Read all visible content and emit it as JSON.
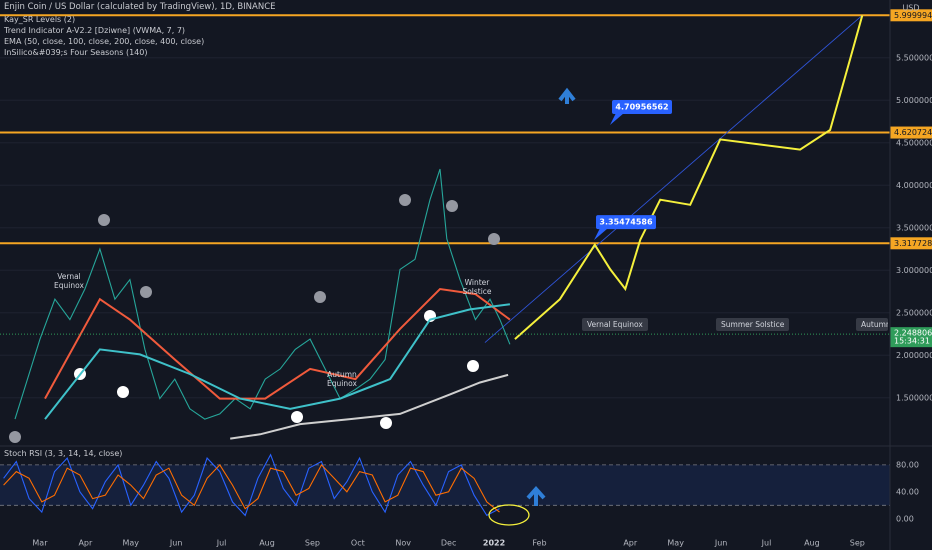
{
  "header": {
    "title": "Enjin Coin / US Dollar (calculated by TradingView), 1D, BINANCE",
    "indicators": [
      "Kay_SR Levels (2)",
      "Trend Indicator A-V2.2 [Dziwne] (VWMA, 7, 7)",
      "EMA (50, close, 100, close, 200, close, 400, close)",
      "InSilico&#039;s Four Seasons (140)"
    ],
    "currency": "USD",
    "countdown": "15:34:31"
  },
  "seasons": {
    "in_chart": [
      "Vernal Equinox",
      "Autumn Equinox",
      "Winter Solstice"
    ],
    "ahead": [
      "Vernal Equinox",
      "Summer Solstice",
      "Autumn E"
    ]
  },
  "chart_data": [
    {
      "type": "line",
      "xlim": [
        -0.88,
        18.72
      ],
      "ylim": [
        0.98,
        6.18
      ],
      "grid": true,
      "xticks": [
        {
          "value": 0,
          "label": "Mar"
        },
        {
          "value": 1,
          "label": "Apr"
        },
        {
          "value": 2,
          "label": "May"
        },
        {
          "value": 3,
          "label": "Jun"
        },
        {
          "value": 4,
          "label": "Jul"
        },
        {
          "value": 5,
          "label": "Aug"
        },
        {
          "value": 6,
          "label": "Sep"
        },
        {
          "value": 7,
          "label": "Oct"
        },
        {
          "value": 8,
          "label": "Nov"
        },
        {
          "value": 9,
          "label": "Dec"
        },
        {
          "value": 10,
          "label": "2022"
        },
        {
          "value": 11,
          "label": "Feb"
        },
        {
          "value": 13,
          "label": "Apr"
        },
        {
          "value": 14,
          "label": "May"
        },
        {
          "value": 15,
          "label": "Jun"
        },
        {
          "value": 16,
          "label": "Jul"
        },
        {
          "value": 17,
          "label": "Aug"
        },
        {
          "value": 18,
          "label": "Sep"
        }
      ],
      "yticks": [
        {
          "value": 1.5,
          "label": "1.50000000"
        },
        {
          "value": 2,
          "label": "2.00000000"
        },
        {
          "value": 2.5,
          "label": "2.50000000"
        },
        {
          "value": 3,
          "label": "3.00000000"
        },
        {
          "value": 3.5,
          "label": "3.50000000"
        },
        {
          "value": 4,
          "label": "4.00000000"
        },
        {
          "value": 4.5,
          "label": "4.50000000"
        },
        {
          "value": 5,
          "label": "5.00000000"
        },
        {
          "value": 5.5,
          "label": "5.50000000"
        }
      ],
      "levels": [
        {
          "value": 5.9999942,
          "label": "5.99999420"
        },
        {
          "value": 4.62072498,
          "label": "4.62072498"
        },
        {
          "value": 3.31772893,
          "label": "3.31772893"
        }
      ],
      "level_color": "#f5a623",
      "last_price": {
        "value": 2.24880659,
        "label": "2.24880659"
      },
      "callouts": [
        {
          "value": 4.70956562,
          "label": "4.70956562"
        },
        {
          "value": 3.35474586,
          "label": "3.35474586"
        }
      ],
      "series": [
        {
          "color": "#26a69a",
          "x": [
            -0.55,
            0,
            0.33,
            0.66,
            0.99,
            1.32,
            1.65,
            1.98,
            2.31,
            2.64,
            2.97,
            3.3,
            3.63,
            3.96,
            4.3,
            4.63,
            4.96,
            5.29,
            5.62,
            5.95,
            6.28,
            6.61,
            6.95,
            7.27,
            7.6,
            7.93,
            8.26,
            8.59,
            8.81,
            8.96,
            9.25,
            9.59,
            9.91,
            10.13,
            10.35
          ],
          "values": [
            1.25,
            2.19,
            2.66,
            2.42,
            2.78,
            3.25,
            2.66,
            2.89,
            2.07,
            1.49,
            1.72,
            1.37,
            1.25,
            1.31,
            1.49,
            1.37,
            1.72,
            1.84,
            2.07,
            2.19,
            1.84,
            1.49,
            1.6,
            1.72,
            1.95,
            3.01,
            3.13,
            3.83,
            4.19,
            3.37,
            2.89,
            2.42,
            2.66,
            2.42,
            2.13
          ]
        },
        {
          "color": "#f05a3c",
          "x": [
            0.11,
            1.32,
            1.98,
            2.97,
            3.96,
            4.96,
            5.95,
            6.95,
            7.93,
            8.81,
            9.59,
            10.35
          ],
          "values": [
            1.49,
            2.66,
            2.42,
            1.95,
            1.49,
            1.49,
            1.84,
            1.72,
            2.31,
            2.78,
            2.72,
            2.42
          ]
        },
        {
          "color": "#3fc1c9",
          "x": [
            0.11,
            1.32,
            2.2,
            3.3,
            4.41,
            5.51,
            6.61,
            7.71,
            8.59,
            9.47,
            10.35
          ],
          "values": [
            1.25,
            2.07,
            2.01,
            1.78,
            1.49,
            1.37,
            1.49,
            1.72,
            2.42,
            2.54,
            2.6
          ]
        },
        {
          "color": "#cfcfcf",
          "x": [
            4.19,
            4.85,
            5.73,
            6.83,
            7.93,
            9.03,
            9.69,
            10.31
          ],
          "values": [
            1.02,
            1.07,
            1.19,
            1.25,
            1.31,
            1.54,
            1.68,
            1.77
          ]
        },
        {
          "color": "#f5f03c",
          "x": [
            10.46,
            11.45,
            12.22,
            12.56,
            12.89,
            13.22,
            13.66,
            14.32,
            14.98,
            15.86,
            16.74,
            17.4,
            17.84,
            18.11
          ],
          "values": [
            2.19,
            2.66,
            3.3,
            3.01,
            2.78,
            3.36,
            3.83,
            3.77,
            4.54,
            4.48,
            4.42,
            4.65,
            5.48,
            6.0
          ]
        }
      ]
    },
    {
      "type": "line",
      "title": "Stoch RSI (3, 3, 14, 14, close)",
      "xlim": [
        -0.88,
        18.72
      ],
      "ylim": [
        -27,
        105
      ],
      "band": [
        20,
        80
      ],
      "yticks": [
        {
          "value": 80,
          "label": "80.00"
        },
        {
          "value": 40,
          "label": "40.00"
        },
        {
          "value": 0,
          "label": "0.00"
        }
      ],
      "series": [
        {
          "color": "#2962ff",
          "x": [
            -0.8,
            -0.52,
            -0.24,
            0.04,
            0.32,
            0.6,
            0.88,
            1.16,
            1.44,
            1.72,
            2,
            2.28,
            2.56,
            2.84,
            3.12,
            3.4,
            3.68,
            3.96,
            4.24,
            4.52,
            4.8,
            5.08,
            5.36,
            5.64,
            5.92,
            6.2,
            6.48,
            6.76,
            7.04,
            7.32,
            7.6,
            7.88,
            8.16,
            8.44,
            8.72,
            9,
            9.28,
            9.56,
            9.84,
            10.12
          ],
          "values": [
            60,
            85,
            30,
            10,
            70,
            90,
            40,
            15,
            55,
            80,
            20,
            50,
            85,
            60,
            10,
            35,
            90,
            70,
            25,
            5,
            60,
            95,
            45,
            20,
            75,
            85,
            30,
            55,
            90,
            40,
            10,
            65,
            85,
            50,
            20,
            70,
            80,
            35,
            5,
            15
          ]
        },
        {
          "color": "#ff6d00",
          "x": [
            -0.8,
            -0.52,
            -0.24,
            0.04,
            0.32,
            0.6,
            0.88,
            1.16,
            1.44,
            1.72,
            2,
            2.28,
            2.56,
            2.84,
            3.12,
            3.4,
            3.68,
            3.96,
            4.24,
            4.52,
            4.8,
            5.08,
            5.36,
            5.64,
            5.92,
            6.2,
            6.48,
            6.76,
            7.04,
            7.32,
            7.6,
            7.88,
            8.16,
            8.44,
            8.72,
            9,
            9.28,
            9.56,
            9.84,
            10.12
          ],
          "values": [
            50,
            70,
            60,
            25,
            35,
            75,
            65,
            30,
            35,
            65,
            50,
            30,
            65,
            75,
            35,
            20,
            60,
            80,
            50,
            15,
            30,
            75,
            70,
            35,
            45,
            80,
            60,
            40,
            70,
            65,
            25,
            35,
            75,
            70,
            35,
            40,
            75,
            60,
            25,
            10
          ]
        }
      ]
    }
  ]
}
